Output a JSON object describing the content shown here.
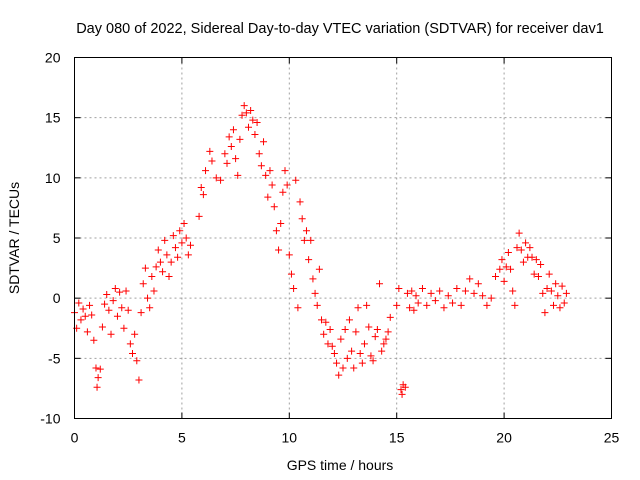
{
  "chart_data": {
    "type": "scatter",
    "title": "Day 080 of 2022, Sidereal Day-to-day VTEC variation (SDTVAR) for receiver dav1",
    "xlabel": "GPS time / hours",
    "ylabel": "SDTVAR / TECUs",
    "xlim": [
      0,
      25
    ],
    "ylim": [
      -10,
      20
    ],
    "xticks": [
      "0",
      "5",
      "10",
      "15",
      "20",
      "25"
    ],
    "yticks": [
      "-10",
      "-5",
      "0",
      "5",
      "10",
      "15",
      "20"
    ],
    "grid": true,
    "marker": "+",
    "color": "#ff0000",
    "series": [
      {
        "name": "SDTVAR",
        "points": [
          [
            0.0,
            -1.2
          ],
          [
            0.1,
            -2.5
          ],
          [
            0.2,
            -0.4
          ],
          [
            0.3,
            -1.8
          ],
          [
            0.4,
            -0.9
          ],
          [
            0.5,
            -1.5
          ],
          [
            0.6,
            -2.8
          ],
          [
            0.7,
            -0.6
          ],
          [
            0.8,
            -1.4
          ],
          [
            0.9,
            -3.5
          ],
          [
            1.0,
            -5.8
          ],
          [
            1.05,
            -7.4
          ],
          [
            1.1,
            -6.6
          ],
          [
            1.2,
            -5.9
          ],
          [
            1.3,
            -2.4
          ],
          [
            1.4,
            -0.5
          ],
          [
            1.5,
            0.3
          ],
          [
            1.6,
            -1.0
          ],
          [
            1.7,
            -3.0
          ],
          [
            1.8,
            -0.2
          ],
          [
            1.9,
            0.8
          ],
          [
            2.0,
            -1.5
          ],
          [
            2.1,
            0.5
          ],
          [
            2.2,
            -0.8
          ],
          [
            2.3,
            -2.5
          ],
          [
            2.4,
            0.6
          ],
          [
            2.5,
            -1.0
          ],
          [
            2.6,
            -3.8
          ],
          [
            2.7,
            -4.6
          ],
          [
            2.8,
            -3.0
          ],
          [
            2.9,
            -5.2
          ],
          [
            3.0,
            -6.8
          ],
          [
            3.1,
            -1.2
          ],
          [
            3.2,
            1.2
          ],
          [
            3.3,
            2.5
          ],
          [
            3.4,
            0.0
          ],
          [
            3.5,
            -0.8
          ],
          [
            3.6,
            1.8
          ],
          [
            3.7,
            0.6
          ],
          [
            3.8,
            2.6
          ],
          [
            3.9,
            4.0
          ],
          [
            4.0,
            3.0
          ],
          [
            4.1,
            2.2
          ],
          [
            4.2,
            4.8
          ],
          [
            4.3,
            3.6
          ],
          [
            4.4,
            1.8
          ],
          [
            4.5,
            3.0
          ],
          [
            4.6,
            5.2
          ],
          [
            4.7,
            4.2
          ],
          [
            4.8,
            3.4
          ],
          [
            4.9,
            5.6
          ],
          [
            5.0,
            4.6
          ],
          [
            5.1,
            6.2
          ],
          [
            5.2,
            5.0
          ],
          [
            5.3,
            3.6
          ],
          [
            5.4,
            4.4
          ],
          [
            5.8,
            6.8
          ],
          [
            5.9,
            9.2
          ],
          [
            6.0,
            8.6
          ],
          [
            6.1,
            10.6
          ],
          [
            6.3,
            12.2
          ],
          [
            6.4,
            11.4
          ],
          [
            6.6,
            10.0
          ],
          [
            6.8,
            9.8
          ],
          [
            7.0,
            12.0
          ],
          [
            7.1,
            11.2
          ],
          [
            7.2,
            13.4
          ],
          [
            7.3,
            12.6
          ],
          [
            7.4,
            14.0
          ],
          [
            7.5,
            11.6
          ],
          [
            7.6,
            10.2
          ],
          [
            7.7,
            13.2
          ],
          [
            7.8,
            15.2
          ],
          [
            7.9,
            16.0
          ],
          [
            8.0,
            15.4
          ],
          [
            8.1,
            14.2
          ],
          [
            8.2,
            15.6
          ],
          [
            8.3,
            14.8
          ],
          [
            8.4,
            13.6
          ],
          [
            8.5,
            14.6
          ],
          [
            8.6,
            12.0
          ],
          [
            8.7,
            11.0
          ],
          [
            8.8,
            13.0
          ],
          [
            8.9,
            10.2
          ],
          [
            9.0,
            8.4
          ],
          [
            9.1,
            10.6
          ],
          [
            9.2,
            9.4
          ],
          [
            9.3,
            7.6
          ],
          [
            9.4,
            5.6
          ],
          [
            9.5,
            4.0
          ],
          [
            9.6,
            6.2
          ],
          [
            9.7,
            8.8
          ],
          [
            9.8,
            10.6
          ],
          [
            9.9,
            9.4
          ],
          [
            10.0,
            3.6
          ],
          [
            10.1,
            2.0
          ],
          [
            10.2,
            0.8
          ],
          [
            10.3,
            9.8
          ],
          [
            10.4,
            -0.8
          ],
          [
            10.5,
            8.0
          ],
          [
            10.6,
            6.6
          ],
          [
            10.7,
            4.8
          ],
          [
            10.8,
            5.6
          ],
          [
            10.9,
            3.2
          ],
          [
            11.0,
            4.8
          ],
          [
            11.1,
            1.6
          ],
          [
            11.2,
            0.4
          ],
          [
            11.3,
            -0.6
          ],
          [
            11.4,
            2.4
          ],
          [
            11.5,
            -1.8
          ],
          [
            11.6,
            -3.0
          ],
          [
            11.7,
            -2.0
          ],
          [
            11.8,
            -3.8
          ],
          [
            11.9,
            -2.6
          ],
          [
            12.0,
            -4.0
          ],
          [
            12.1,
            -4.6
          ],
          [
            12.2,
            -5.4
          ],
          [
            12.3,
            -6.4
          ],
          [
            12.4,
            -3.4
          ],
          [
            12.5,
            -5.8
          ],
          [
            12.6,
            -2.6
          ],
          [
            12.7,
            -5.0
          ],
          [
            12.8,
            -1.8
          ],
          [
            12.9,
            -4.4
          ],
          [
            13.0,
            -5.8
          ],
          [
            13.1,
            -2.8
          ],
          [
            13.2,
            -0.8
          ],
          [
            13.3,
            -4.6
          ],
          [
            13.4,
            -5.4
          ],
          [
            13.5,
            -3.8
          ],
          [
            13.6,
            -0.6
          ],
          [
            13.7,
            -2.4
          ],
          [
            13.8,
            -4.8
          ],
          [
            13.9,
            -5.2
          ],
          [
            14.0,
            -3.2
          ],
          [
            14.1,
            -2.6
          ],
          [
            14.2,
            1.2
          ],
          [
            14.3,
            -4.4
          ],
          [
            14.4,
            -3.8
          ],
          [
            14.5,
            -3.4
          ],
          [
            14.6,
            -2.8
          ],
          [
            14.7,
            -1.6
          ],
          [
            15.0,
            -0.6
          ],
          [
            15.1,
            0.8
          ],
          [
            15.2,
            -7.6
          ],
          [
            15.25,
            -8.0
          ],
          [
            15.3,
            -7.2
          ],
          [
            15.4,
            -7.4
          ],
          [
            15.5,
            0.4
          ],
          [
            15.6,
            -0.8
          ],
          [
            15.7,
            0.6
          ],
          [
            15.8,
            -1.0
          ],
          [
            15.9,
            0.2
          ],
          [
            16.0,
            -0.4
          ],
          [
            16.2,
            0.8
          ],
          [
            16.4,
            -0.6
          ],
          [
            16.6,
            0.4
          ],
          [
            16.8,
            -0.2
          ],
          [
            17.0,
            0.6
          ],
          [
            17.2,
            -0.8
          ],
          [
            17.4,
            0.2
          ],
          [
            17.6,
            -0.4
          ],
          [
            17.8,
            0.8
          ],
          [
            18.0,
            -0.6
          ],
          [
            18.2,
            0.6
          ],
          [
            18.4,
            1.6
          ],
          [
            18.6,
            0.4
          ],
          [
            18.8,
            1.2
          ],
          [
            19.0,
            0.2
          ],
          [
            19.2,
            -0.6
          ],
          [
            19.4,
            0.0
          ],
          [
            19.6,
            1.8
          ],
          [
            19.8,
            2.4
          ],
          [
            19.9,
            3.2
          ],
          [
            20.0,
            1.4
          ],
          [
            20.1,
            2.6
          ],
          [
            20.2,
            3.8
          ],
          [
            20.3,
            2.4
          ],
          [
            20.4,
            0.6
          ],
          [
            20.5,
            -0.6
          ],
          [
            20.6,
            4.2
          ],
          [
            20.7,
            5.4
          ],
          [
            20.8,
            4.0
          ],
          [
            20.9,
            3.0
          ],
          [
            21.0,
            4.6
          ],
          [
            21.1,
            3.4
          ],
          [
            21.2,
            4.2
          ],
          [
            21.3,
            3.4
          ],
          [
            21.4,
            2.0
          ],
          [
            21.5,
            3.2
          ],
          [
            21.6,
            1.8
          ],
          [
            21.7,
            2.8
          ],
          [
            21.8,
            0.4
          ],
          [
            21.9,
            -1.2
          ],
          [
            22.0,
            0.8
          ],
          [
            22.1,
            2.0
          ],
          [
            22.2,
            0.6
          ],
          [
            22.3,
            -0.6
          ],
          [
            22.4,
            1.2
          ],
          [
            22.5,
            0.2
          ],
          [
            22.6,
            -0.8
          ],
          [
            22.7,
            1.0
          ],
          [
            22.8,
            -0.4
          ],
          [
            22.9,
            0.4
          ]
        ]
      }
    ]
  }
}
